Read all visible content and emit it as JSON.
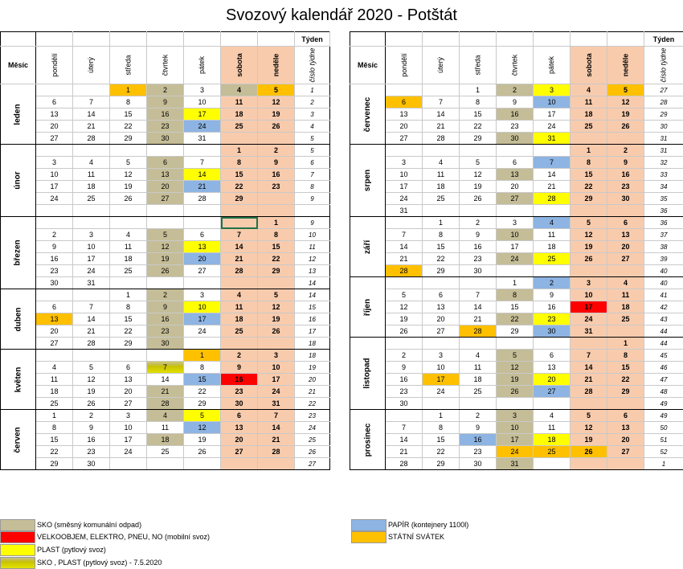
{
  "title": "Svozový kalendář 2020 - Potštát",
  "header": {
    "mesic": "Měsíc",
    "tyden": "Týden",
    "cislo_tydne": "číslo týdne",
    "days": [
      "pondělí",
      "úterý",
      "středa",
      "čtvrtek",
      "pátek",
      "sobota",
      "neděle"
    ]
  },
  "colors": {
    "sko": "#c4bd97",
    "velkoobjem": "#ff0000",
    "plast": "#ffff00",
    "papir": "#8db4e2",
    "statni_svatek": "#ffc000",
    "weekend": "#f8cbad"
  },
  "left_months": [
    {
      "name": "leden",
      "weeks": [
        {
          "days": [
            "",
            "",
            "1",
            "2",
            "3",
            "4",
            "5"
          ],
          "wk": "1",
          "colors": {
            "2": "sta",
            "3": "sko",
            "5": "sko",
            "6": "sta"
          }
        },
        {
          "days": [
            "6",
            "7",
            "8",
            "9",
            "10",
            "11",
            "12"
          ],
          "wk": "2",
          "colors": {
            "3": "sko"
          }
        },
        {
          "days": [
            "13",
            "14",
            "15",
            "16",
            "17",
            "18",
            "19"
          ],
          "wk": "3",
          "colors": {
            "3": "sko",
            "4": "pla"
          }
        },
        {
          "days": [
            "20",
            "21",
            "22",
            "23",
            "24",
            "25",
            "26"
          ],
          "wk": "4",
          "colors": {
            "3": "sko",
            "4": "pap"
          }
        },
        {
          "days": [
            "27",
            "28",
            "29",
            "30",
            "31",
            "",
            ""
          ],
          "wk": "5",
          "colors": {
            "3": "sko"
          }
        }
      ]
    },
    {
      "name": "únor",
      "weeks": [
        {
          "days": [
            "",
            "",
            "",
            "",
            "",
            "1",
            "2"
          ],
          "wk": "5",
          "colors": {}
        },
        {
          "days": [
            "3",
            "4",
            "5",
            "6",
            "7",
            "8",
            "9"
          ],
          "wk": "6",
          "colors": {
            "3": "sko"
          }
        },
        {
          "days": [
            "10",
            "11",
            "12",
            "13",
            "14",
            "15",
            "16"
          ],
          "wk": "7",
          "colors": {
            "3": "sko",
            "4": "pla"
          }
        },
        {
          "days": [
            "17",
            "18",
            "19",
            "20",
            "21",
            "22",
            "23"
          ],
          "wk": "8",
          "colors": {
            "3": "sko",
            "4": "pap"
          }
        },
        {
          "days": [
            "24",
            "25",
            "26",
            "27",
            "28",
            "29",
            ""
          ],
          "wk": "9",
          "colors": {
            "3": "sko"
          }
        },
        {
          "days": [
            "",
            "",
            "",
            "",
            "",
            "",
            ""
          ],
          "wk": "",
          "colors": {}
        }
      ]
    },
    {
      "name": "březen",
      "weeks": [
        {
          "days": [
            "",
            "",
            "",
            "",
            "",
            "",
            "1"
          ],
          "wk": "9",
          "colors": {},
          "sel": 5
        },
        {
          "days": [
            "2",
            "3",
            "4",
            "5",
            "6",
            "7",
            "8"
          ],
          "wk": "10",
          "colors": {
            "3": "sko"
          }
        },
        {
          "days": [
            "9",
            "10",
            "11",
            "12",
            "13",
            "14",
            "15"
          ],
          "wk": "11",
          "colors": {
            "3": "sko",
            "4": "pla"
          }
        },
        {
          "days": [
            "16",
            "17",
            "18",
            "19",
            "20",
            "21",
            "22"
          ],
          "wk": "12",
          "colors": {
            "3": "sko",
            "4": "pap"
          }
        },
        {
          "days": [
            "23",
            "24",
            "25",
            "26",
            "27",
            "28",
            "29"
          ],
          "wk": "13",
          "colors": {
            "3": "sko"
          }
        },
        {
          "days": [
            "30",
            "31",
            "",
            "",
            "",
            "",
            ""
          ],
          "wk": "14",
          "colors": {}
        }
      ]
    },
    {
      "name": "duben",
      "weeks": [
        {
          "days": [
            "",
            "",
            "1",
            "2",
            "3",
            "4",
            "5"
          ],
          "wk": "14",
          "colors": {
            "3": "sko"
          }
        },
        {
          "days": [
            "6",
            "7",
            "8",
            "9",
            "10",
            "11",
            "12"
          ],
          "wk": "15",
          "colors": {
            "3": "sko",
            "4": "pla"
          }
        },
        {
          "days": [
            "13",
            "14",
            "15",
            "16",
            "17",
            "18",
            "19"
          ],
          "wk": "16",
          "colors": {
            "0": "sta",
            "3": "sko",
            "4": "pap"
          }
        },
        {
          "days": [
            "20",
            "21",
            "22",
            "23",
            "24",
            "25",
            "26"
          ],
          "wk": "17",
          "colors": {
            "3": "sko"
          }
        },
        {
          "days": [
            "27",
            "28",
            "29",
            "30",
            "",
            "",
            ""
          ],
          "wk": "18",
          "colors": {
            "3": "sko"
          }
        }
      ]
    },
    {
      "name": "květen",
      "weeks": [
        {
          "days": [
            "",
            "",
            "",
            "",
            "1",
            "2",
            "3"
          ],
          "wk": "18",
          "colors": {
            "4": "sta"
          }
        },
        {
          "days": [
            "4",
            "5",
            "6",
            "7",
            "8",
            "9",
            "10"
          ],
          "wk": "19",
          "colors": {
            "3": "skopla"
          }
        },
        {
          "days": [
            "11",
            "12",
            "13",
            "14",
            "15",
            "16",
            "17"
          ],
          "wk": "20",
          "colors": {
            "4": "pap",
            "5": "vel"
          }
        },
        {
          "days": [
            "18",
            "19",
            "20",
            "21",
            "22",
            "23",
            "24"
          ],
          "wk": "21",
          "colors": {
            "3": "sko"
          }
        },
        {
          "days": [
            "25",
            "26",
            "27",
            "28",
            "29",
            "30",
            "31"
          ],
          "wk": "22",
          "colors": {
            "3": "sko"
          }
        }
      ]
    },
    {
      "name": "červen",
      "weeks": [
        {
          "days": [
            "1",
            "2",
            "3",
            "4",
            "5",
            "6",
            "7"
          ],
          "wk": "23",
          "colors": {
            "3": "sko",
            "4": "pla"
          }
        },
        {
          "days": [
            "8",
            "9",
            "10",
            "11",
            "12",
            "13",
            "14"
          ],
          "wk": "24",
          "colors": {
            "4": "pap"
          }
        },
        {
          "days": [
            "15",
            "16",
            "17",
            "18",
            "19",
            "20",
            "21"
          ],
          "wk": "25",
          "colors": {
            "3": "sko"
          }
        },
        {
          "days": [
            "22",
            "23",
            "24",
            "25",
            "26",
            "27",
            "28"
          ],
          "wk": "26",
          "colors": {}
        },
        {
          "days": [
            "29",
            "30",
            "",
            "",
            "",
            "",
            ""
          ],
          "wk": "27",
          "colors": {}
        }
      ]
    }
  ],
  "right_months": [
    {
      "name": "červenec",
      "weeks": [
        {
          "days": [
            "",
            "",
            "1",
            "2",
            "3",
            "4",
            "5"
          ],
          "wk": "27",
          "colors": {
            "3": "sko",
            "4": "pla",
            "6": "sta"
          }
        },
        {
          "days": [
            "6",
            "7",
            "8",
            "9",
            "10",
            "11",
            "12"
          ],
          "wk": "28",
          "colors": {
            "0": "sta",
            "4": "pap"
          }
        },
        {
          "days": [
            "13",
            "14",
            "15",
            "16",
            "17",
            "18",
            "19"
          ],
          "wk": "29",
          "colors": {
            "3": "sko"
          }
        },
        {
          "days": [
            "20",
            "21",
            "22",
            "23",
            "24",
            "25",
            "26"
          ],
          "wk": "30",
          "colors": {}
        },
        {
          "days": [
            "27",
            "28",
            "29",
            "30",
            "31",
            "",
            ""
          ],
          "wk": "31",
          "colors": {
            "3": "sko",
            "4": "pla"
          }
        }
      ]
    },
    {
      "name": "srpen",
      "weeks": [
        {
          "days": [
            "",
            "",
            "",
            "",
            "",
            "1",
            "2"
          ],
          "wk": "31",
          "colors": {}
        },
        {
          "days": [
            "3",
            "4",
            "5",
            "6",
            "7",
            "8",
            "9"
          ],
          "wk": "32",
          "colors": {
            "4": "pap"
          }
        },
        {
          "days": [
            "10",
            "11",
            "12",
            "13",
            "14",
            "15",
            "16"
          ],
          "wk": "33",
          "colors": {
            "3": "sko"
          }
        },
        {
          "days": [
            "17",
            "18",
            "19",
            "20",
            "21",
            "22",
            "23"
          ],
          "wk": "34",
          "colors": {}
        },
        {
          "days": [
            "24",
            "25",
            "26",
            "27",
            "28",
            "29",
            "30"
          ],
          "wk": "35",
          "colors": {
            "3": "sko",
            "4": "pla"
          }
        },
        {
          "days": [
            "31",
            "",
            "",
            "",
            "",
            "",
            ""
          ],
          "wk": "36",
          "colors": {}
        }
      ]
    },
    {
      "name": "září",
      "weeks": [
        {
          "days": [
            "",
            "1",
            "2",
            "3",
            "4",
            "5",
            "6"
          ],
          "wk": "36",
          "colors": {
            "4": "pap"
          }
        },
        {
          "days": [
            "7",
            "8",
            "9",
            "10",
            "11",
            "12",
            "13"
          ],
          "wk": "37",
          "colors": {
            "3": "sko"
          }
        },
        {
          "days": [
            "14",
            "15",
            "16",
            "17",
            "18",
            "19",
            "20"
          ],
          "wk": "38",
          "colors": {}
        },
        {
          "days": [
            "21",
            "22",
            "23",
            "24",
            "25",
            "26",
            "27"
          ],
          "wk": "39",
          "colors": {
            "3": "sko",
            "4": "pla"
          }
        },
        {
          "days": [
            "28",
            "29",
            "30",
            "",
            "",
            "",
            ""
          ],
          "wk": "40",
          "colors": {
            "0": "sta"
          }
        }
      ]
    },
    {
      "name": "říjen",
      "weeks": [
        {
          "days": [
            "",
            "",
            "",
            "1",
            "2",
            "3",
            "4"
          ],
          "wk": "40",
          "colors": {
            "4": "pap"
          }
        },
        {
          "days": [
            "5",
            "6",
            "7",
            "8",
            "9",
            "10",
            "11"
          ],
          "wk": "41",
          "colors": {
            "3": "sko"
          }
        },
        {
          "days": [
            "12",
            "13",
            "14",
            "15",
            "16",
            "17",
            "18"
          ],
          "wk": "42",
          "colors": {
            "5": "vel"
          }
        },
        {
          "days": [
            "19",
            "20",
            "21",
            "22",
            "23",
            "24",
            "25"
          ],
          "wk": "43",
          "colors": {
            "3": "sko",
            "4": "pla"
          }
        },
        {
          "days": [
            "26",
            "27",
            "28",
            "29",
            "30",
            "31",
            ""
          ],
          "wk": "44",
          "colors": {
            "2": "sta",
            "4": "pap"
          }
        }
      ]
    },
    {
      "name": "listopad",
      "weeks": [
        {
          "days": [
            "",
            "",
            "",
            "",
            "",
            "",
            "1"
          ],
          "wk": "44",
          "colors": {}
        },
        {
          "days": [
            "2",
            "3",
            "4",
            "5",
            "6",
            "7",
            "8"
          ],
          "wk": "45",
          "colors": {
            "3": "sko"
          }
        },
        {
          "days": [
            "9",
            "10",
            "11",
            "12",
            "13",
            "14",
            "15"
          ],
          "wk": "46",
          "colors": {
            "3": "sko"
          }
        },
        {
          "days": [
            "16",
            "17",
            "18",
            "19",
            "20",
            "21",
            "22"
          ],
          "wk": "47",
          "colors": {
            "1": "sta",
            "3": "sko",
            "4": "pla"
          }
        },
        {
          "days": [
            "23",
            "24",
            "25",
            "26",
            "27",
            "28",
            "29"
          ],
          "wk": "48",
          "colors": {
            "3": "sko",
            "4": "pap"
          }
        },
        {
          "days": [
            "30",
            "",
            "",
            "",
            "",
            "",
            ""
          ],
          "wk": "49",
          "colors": {}
        }
      ]
    },
    {
      "name": "prosinec",
      "weeks": [
        {
          "days": [
            "",
            "1",
            "2",
            "3",
            "4",
            "5",
            "6"
          ],
          "wk": "49",
          "colors": {
            "3": "sko"
          }
        },
        {
          "days": [
            "7",
            "8",
            "9",
            "10",
            "11",
            "12",
            "13"
          ],
          "wk": "50",
          "colors": {
            "3": "sko"
          }
        },
        {
          "days": [
            "14",
            "15",
            "16",
            "17",
            "18",
            "19",
            "20"
          ],
          "wk": "51",
          "colors": {
            "2": "pap",
            "3": "sko",
            "4": "pla"
          }
        },
        {
          "days": [
            "21",
            "22",
            "23",
            "24",
            "25",
            "26",
            "27"
          ],
          "wk": "52",
          "colors": {
            "3": "sta",
            "4": "sta",
            "5": "sta"
          }
        },
        {
          "days": [
            "28",
            "29",
            "30",
            "31",
            "",
            "",
            ""
          ],
          "wk": "1",
          "colors": {
            "3": "sko"
          }
        }
      ]
    }
  ],
  "legend": [
    {
      "key": "sko",
      "text": "SKO (směsný komunální odpad)"
    },
    {
      "key": "vel",
      "text": "VELKOOBJEM, ELEKTRO, PNEU, NO (mobilní svoz)"
    },
    {
      "key": "pla",
      "text": "PLAST (pytlový svoz)"
    },
    {
      "key": "skopla",
      "text": "SKO , PLAST (pytlový svoz) - 7.5.2020"
    },
    {
      "key": "pap",
      "text": "PAPÍR (kontejnery 1100l)"
    },
    {
      "key": "sta",
      "text": "STÁTNÍ SVÁTEK"
    }
  ]
}
